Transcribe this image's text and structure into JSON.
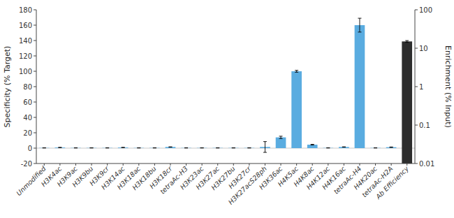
{
  "chart_data": {
    "type": "bar",
    "categories": [
      "Unmodified",
      "H3K4ac",
      "H3K9ac",
      "H3K9bu",
      "H3K9cr",
      "H3K14ac",
      "H3K18ac",
      "H3K18bu",
      "H3K18cr",
      "tetraAc-H3",
      "H3K23ac",
      "H3K27ac",
      "H3K27bu",
      "H3K27cr",
      "H3K27acS28ph",
      "H3K36ac",
      "H4K5ac",
      "H4K8ac",
      "H4K12ac",
      "H4K16ac",
      "tetraAc-H4",
      "H4K20ac",
      "tetraAc-H2A",
      "Ab Efficiency"
    ],
    "series": [
      {
        "color": "#5aace0",
        "values": [
          0.3,
          0.8,
          0.3,
          0.3,
          0.3,
          0.8,
          0.3,
          0.3,
          1.5,
          0.3,
          0.3,
          0.3,
          0.3,
          0.3,
          1.5,
          14.0,
          100.0,
          4.5,
          0.3,
          1.5,
          160.0,
          0.3,
          1.2,
          null
        ],
        "errors": [
          0.1,
          0.2,
          0.1,
          0.1,
          0.1,
          0.2,
          0.1,
          0.1,
          0.2,
          0.1,
          0.1,
          0.1,
          0.1,
          0.1,
          7.0,
          1.5,
          1.2,
          0.4,
          0.1,
          0.2,
          9.0,
          0.1,
          0.3,
          null
        ]
      },
      {
        "color": "#2d2d2d",
        "axis": "y2",
        "values": [
          null,
          null,
          null,
          null,
          null,
          null,
          null,
          null,
          null,
          null,
          null,
          null,
          null,
          null,
          null,
          null,
          null,
          null,
          null,
          null,
          null,
          null,
          null,
          15.0
        ],
        "errors": [
          null,
          null,
          null,
          null,
          null,
          null,
          null,
          null,
          null,
          null,
          null,
          null,
          null,
          null,
          null,
          null,
          null,
          null,
          null,
          null,
          null,
          null,
          null,
          0.8
        ]
      }
    ],
    "y_label": "Specificity (% Target)",
    "y2_label": "Enrichment (% Input)",
    "ylim": [
      -20,
      180
    ],
    "yticks": [
      -20,
      0,
      20,
      40,
      60,
      80,
      100,
      120,
      140,
      160,
      180
    ],
    "y2lim": [
      0.01,
      100
    ],
    "y2ticks": [
      0.01,
      0.1,
      1,
      10,
      100
    ],
    "log": "y2",
    "grid": false
  }
}
